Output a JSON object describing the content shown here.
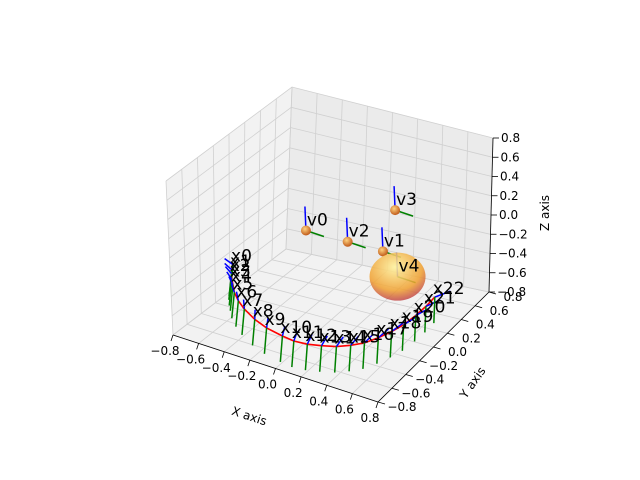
{
  "chart_data": {
    "type": "scatter3d",
    "title": "",
    "axes": {
      "x": {
        "label": "X axis",
        "ticks": [
          "−0.8",
          "−0.6",
          "−0.4",
          "−0.2",
          "0.0",
          "0.2",
          "0.4",
          "0.6",
          "0.8"
        ]
      },
      "y": {
        "label": "Y axis",
        "ticks": [
          "−0.8",
          "−0.6",
          "−0.4",
          "−0.2",
          "0.0",
          "0.2",
          "0.4",
          "0.6",
          "0.8"
        ]
      },
      "z": {
        "label": "Z axis",
        "ticks": [
          "−0.8",
          "−0.6",
          "−0.4",
          "−0.2",
          "0.0",
          "0.2",
          "0.4",
          "0.6",
          "0.8"
        ]
      }
    },
    "xlim": [
      -0.8,
      0.8
    ],
    "ylim": [
      -0.8,
      0.8
    ],
    "zlim": [
      -0.8,
      0.8
    ],
    "grid": true,
    "landmarks": [
      {
        "name": "v0",
        "x": -0.4,
        "y": 0.35,
        "z": -0.25
      },
      {
        "name": "v1",
        "x": 0.15,
        "y": 0.45,
        "z": -0.35
      },
      {
        "name": "v2",
        "x": -0.1,
        "y": 0.4,
        "z": -0.3
      },
      {
        "name": "v3",
        "x": 0.1,
        "y": 0.7,
        "z": -0.1
      },
      {
        "name": "v4",
        "x": 0.35,
        "y": 0.3,
        "z": -0.45
      }
    ],
    "poses": [
      {
        "name": "x0",
        "x": -0.8,
        "y": 0.05,
        "z": -0.55
      },
      {
        "name": "x1",
        "x": -0.78,
        "y": 0.0,
        "z": -0.57
      },
      {
        "name": "x2",
        "x": -0.76,
        "y": -0.04,
        "z": -0.58
      },
      {
        "name": "x3",
        "x": -0.73,
        "y": -0.09,
        "z": -0.6
      },
      {
        "name": "x4",
        "x": -0.7,
        "y": -0.13,
        "z": -0.62
      },
      {
        "name": "x5",
        "x": -0.65,
        "y": -0.2,
        "z": -0.64
      },
      {
        "name": "x6",
        "x": -0.58,
        "y": -0.27,
        "z": -0.66
      },
      {
        "name": "x7",
        "x": -0.5,
        "y": -0.33,
        "z": -0.68
      },
      {
        "name": "x8",
        "x": -0.38,
        "y": -0.4,
        "z": -0.7
      },
      {
        "name": "x9",
        "x": -0.26,
        "y": -0.45,
        "z": -0.71
      },
      {
        "name": "x10",
        "x": -0.12,
        "y": -0.48,
        "z": -0.72
      },
      {
        "name": "x11",
        "x": -0.02,
        "y": -0.5,
        "z": -0.72
      },
      {
        "name": "x12",
        "x": 0.08,
        "y": -0.49,
        "z": -0.72
      },
      {
        "name": "x13",
        "x": 0.18,
        "y": -0.47,
        "z": -0.71
      },
      {
        "name": "x14",
        "x": 0.28,
        "y": -0.44,
        "z": -0.7
      },
      {
        "name": "x15",
        "x": 0.37,
        "y": -0.4,
        "z": -0.68
      },
      {
        "name": "x16",
        "x": 0.45,
        "y": -0.35,
        "z": -0.66
      },
      {
        "name": "x17",
        "x": 0.52,
        "y": -0.28,
        "z": -0.63
      },
      {
        "name": "x18",
        "x": 0.58,
        "y": -0.2,
        "z": -0.6
      },
      {
        "name": "x19",
        "x": 0.63,
        "y": -0.12,
        "z": -0.57
      },
      {
        "name": "x20",
        "x": 0.67,
        "y": -0.02,
        "z": -0.53
      },
      {
        "name": "x21",
        "x": 0.7,
        "y": 0.07,
        "z": -0.49
      },
      {
        "name": "x22",
        "x": 0.72,
        "y": 0.16,
        "z": -0.45
      }
    ],
    "colors": {
      "trajectory": "#ff0000",
      "axis_z": "#0000ff",
      "axis_y": "#008000",
      "landmark": "#ff8c00",
      "highlight_sphere": "#ffd700"
    }
  }
}
